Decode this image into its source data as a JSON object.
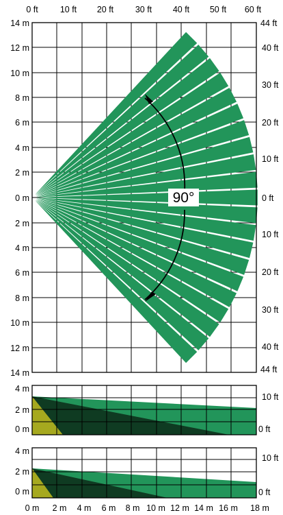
{
  "top_plan": {
    "top_axis_labels": [
      "0 ft",
      "10 ft",
      "20 ft",
      "30 ft",
      "40 ft",
      "50 ft",
      "60 ft"
    ],
    "left_axis_labels": [
      "14 m",
      "12 m",
      "10 m",
      "8 m",
      "6 m",
      "4 m",
      "2 m",
      "0 m",
      "2 m",
      "4 m",
      "6 m",
      "8 m",
      "10 m",
      "12 m",
      "14 m"
    ],
    "right_axis_labels": [
      "44 ft",
      "40 ft",
      "30 ft",
      "20 ft",
      "10 ft",
      "0 ft",
      "10 ft",
      "20 ft",
      "30 ft",
      "40 ft",
      "44 ft"
    ],
    "angle_label": "90°",
    "beam_count": 21
  },
  "side_view_1": {
    "left_axis_labels": [
      "4 m",
      "2 m",
      "0 m"
    ],
    "right_axis_labels": [
      "10 ft",
      "0 ft"
    ]
  },
  "side_view_2": {
    "left_axis_labels": [
      "4 m",
      "2 m",
      "0 m"
    ],
    "right_axis_labels": [
      "10 ft",
      "0 ft"
    ]
  },
  "bottom_axis_labels": [
    "0 m",
    "2 m",
    "4 m",
    "6 m",
    "8 m",
    "10 m",
    "12 m",
    "14 m",
    "16 m",
    "18 m"
  ],
  "colors": {
    "beam_green": "#22955a",
    "dark_green": "#0f3b22",
    "olive": "#a6a91f",
    "grid": "#000000"
  }
}
